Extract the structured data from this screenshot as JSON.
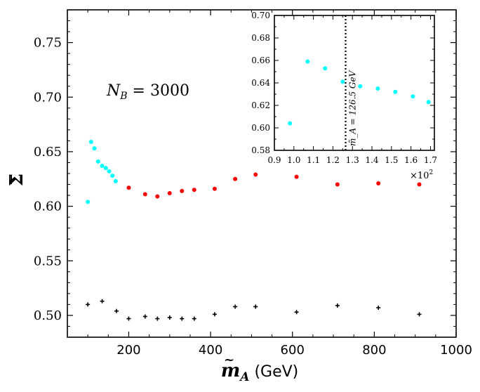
{
  "chart_data": [
    {
      "type": "scatter",
      "title": "",
      "xlabel": "m̃_A (GeV)",
      "ylabel": "Σ̄",
      "xlim": [
        50,
        1000
      ],
      "ylim": [
        0.48,
        0.78
      ],
      "grid": false,
      "x_ticks": [
        200,
        400,
        600,
        800,
        1000
      ],
      "x_tick_labels": [
        "200",
        "400",
        "600",
        "800",
        "1000"
      ],
      "y_ticks": [
        0.5,
        0.55,
        0.6,
        0.65,
        0.7,
        0.75
      ],
      "y_tick_labels": [
        "0.50",
        "0.55",
        "0.60",
        "0.65",
        "0.70",
        "0.75"
      ],
      "annotation": "N_B = 3000",
      "series": [
        {
          "name": "cyan",
          "color": "#00ffff",
          "marker": "dot",
          "x": [
            100,
            108,
            116,
            125,
            135,
            144,
            152,
            160,
            168
          ],
          "y": [
            0.604,
            0.659,
            0.653,
            0.641,
            0.637,
            0.635,
            0.632,
            0.628,
            0.623
          ]
        },
        {
          "name": "red",
          "color": "#ff0000",
          "marker": "dot",
          "x": [
            200,
            240,
            270,
            300,
            330,
            360,
            410,
            460,
            510,
            610,
            710,
            810,
            910
          ],
          "y": [
            0.617,
            0.611,
            0.609,
            0.612,
            0.614,
            0.615,
            0.616,
            0.625,
            0.629,
            0.627,
            0.62,
            0.621,
            0.62
          ]
        },
        {
          "name": "black",
          "color": "#000000",
          "marker": "plus",
          "x": [
            100,
            135,
            170,
            200,
            240,
            270,
            300,
            330,
            360,
            410,
            460,
            510,
            610,
            710,
            810,
            910
          ],
          "y": [
            0.51,
            0.513,
            0.504,
            0.497,
            0.499,
            0.497,
            0.498,
            0.497,
            0.497,
            0.501,
            0.508,
            0.508,
            0.503,
            0.509,
            0.507,
            0.501
          ]
        }
      ]
    },
    {
      "type": "scatter",
      "title": "",
      "xlabel": "",
      "ylabel": "",
      "xlim": [
        0.9,
        1.72
      ],
      "ylim": [
        0.58,
        0.7
      ],
      "grid": false,
      "x_ticks": [
        0.9,
        1.0,
        1.1,
        1.2,
        1.3,
        1.4,
        1.5,
        1.6,
        1.7
      ],
      "x_tick_labels": [
        "0.9",
        "1.0",
        "1.1",
        "1.2",
        "1.3",
        "1.4",
        "1.5",
        "1.6",
        "1.7"
      ],
      "x_multiplier_label": "×10²",
      "y_ticks": [
        0.58,
        0.6,
        0.62,
        0.64,
        0.66,
        0.68,
        0.7
      ],
      "y_tick_labels": [
        "0.58",
        "0.60",
        "0.62",
        "0.64",
        "0.66",
        "0.68",
        "0.70"
      ],
      "vline": {
        "x": 1.265,
        "label": "m̃_A = 126.5 GeV"
      },
      "series": [
        {
          "name": "cyan",
          "color": "#00ffff",
          "marker": "dot",
          "x": [
            0.98,
            1.07,
            1.16,
            1.25,
            1.34,
            1.43,
            1.52,
            1.61,
            1.69
          ],
          "y": [
            0.604,
            0.659,
            0.653,
            0.641,
            0.637,
            0.635,
            0.632,
            0.628,
            0.623
          ]
        }
      ]
    }
  ]
}
